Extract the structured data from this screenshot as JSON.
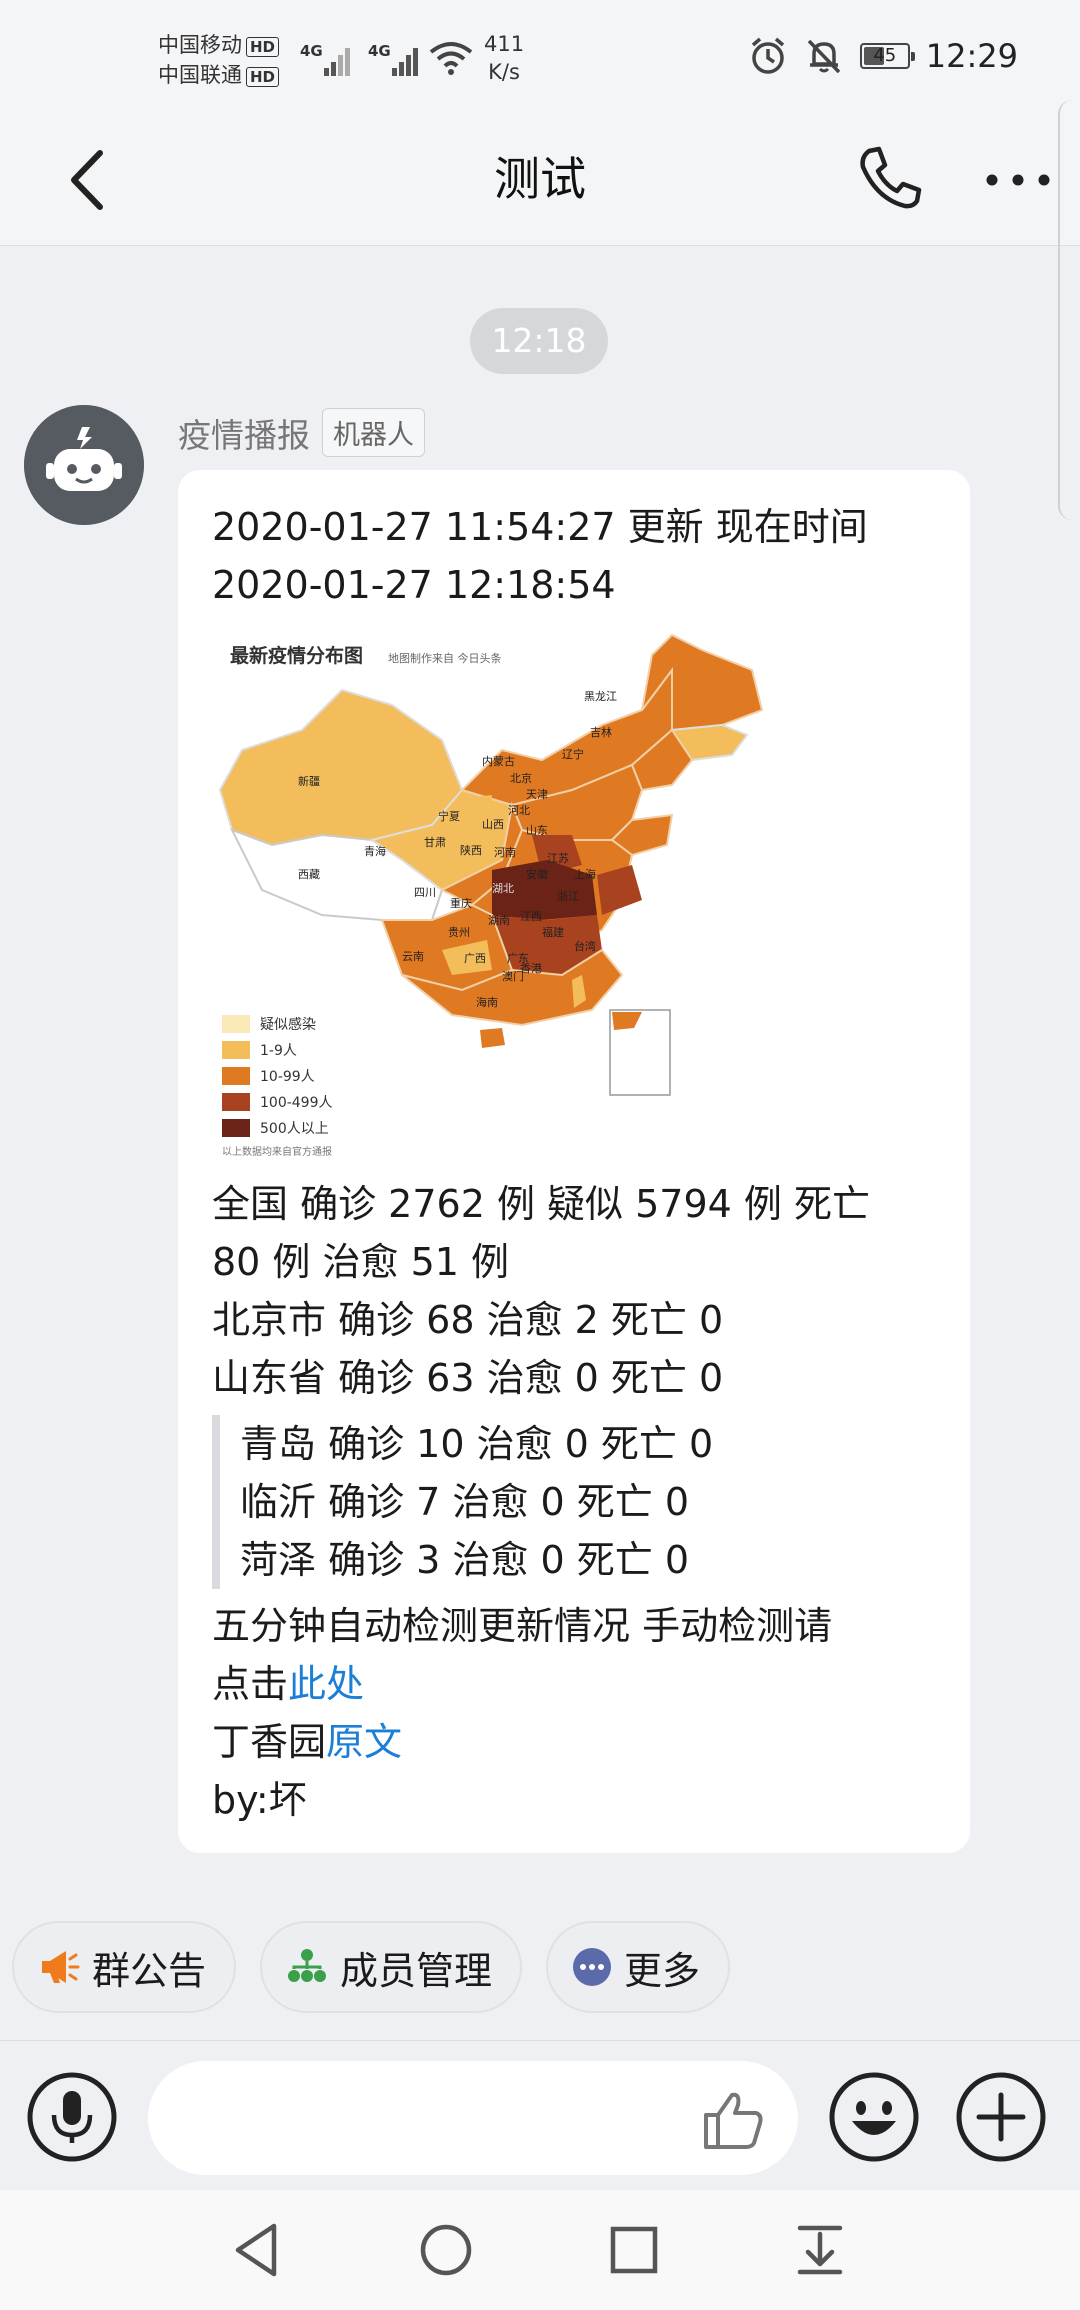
{
  "status_bar": {
    "carrier_1": "中国移动",
    "carrier_2": "中国联通",
    "hd": "HD",
    "network_1": "4G",
    "network_2": "4G",
    "speed_value": "411",
    "speed_unit": "K/s",
    "battery": "45",
    "time": "12:29",
    "icons": [
      "alarm-icon",
      "mute-icon",
      "wifi-icon",
      "signal-icon"
    ]
  },
  "nav": {
    "title": "测试",
    "icons": [
      "back-icon",
      "phone-icon",
      "more-icon"
    ]
  },
  "chat": {
    "timestamp": "12:18",
    "sender": "疫情播报",
    "sender_tag": "机器人",
    "message": {
      "line1": "2020-01-27 11:54:27 更新  现在时间",
      "line2": "2020-01-27 12:18:54",
      "map": {
        "title": "最新疫情分布图",
        "subtitle": "地图制作来自 今日头条",
        "footnote": "以上数据均来自官方通报",
        "legend": [
          {
            "label": "疑似感染",
            "color": "#fbe9b8"
          },
          {
            "label": "1-9人",
            "color": "#f3bd5c"
          },
          {
            "label": "10-99人",
            "color": "#e07a22"
          },
          {
            "label": "100-499人",
            "color": "#a9421f"
          },
          {
            "label": "500人以上",
            "color": "#6b2317"
          }
        ],
        "regions": {
          "xinjiang": "新疆",
          "xizang": "西藏",
          "qinghai": "青海",
          "gansu": "甘肃",
          "neimenggu": "内蒙古",
          "heilongjiang": "黑龙江",
          "jilin": "吉林",
          "liaoning": "辽宁",
          "beijing": "北京",
          "tianjin": "天津",
          "hebei": "河北",
          "shanxi": "山西",
          "shandong": "山东",
          "ningxia": "宁夏",
          "shaanxi": "陕西",
          "henan": "河南",
          "jiangsu": "江苏",
          "shanghai": "上海",
          "anhui": "安徽",
          "hubei": "湖北",
          "sichuan": "四川",
          "chongqing": "重庆",
          "zhejiang": "浙江",
          "hunan": "湖南",
          "jiangxi": "江西",
          "guizhou": "贵州",
          "yunnan": "云南",
          "fujian": "福建",
          "guangxi": "广西",
          "guangdong": "广东",
          "taiwan": "台湾",
          "xianggang": "香港",
          "aomen": "澳门",
          "hainan": "海南"
        }
      },
      "national": "全国 确诊 2762 例 疑似 5794 例 死亡",
      "national_cont": "80 例 治愈 51 例",
      "beijing": "北京市 确诊 68 治愈 2 死亡 0",
      "shandong": "山东省 确诊 63 治愈 0 死亡 0",
      "cities": [
        "青岛 确诊 10 治愈 0 死亡 0",
        "临沂 确诊 7 治愈 0 死亡 0",
        "菏泽 确诊 3 治愈 0 死亡 0"
      ],
      "auto_check": "五分钟自动检测更新情况 手动检测请",
      "click_prefix": "点击",
      "click_link": "此处",
      "dxy_prefix": "丁香园",
      "dxy_link": "原文",
      "by": "by:坏"
    }
  },
  "quick_actions": [
    {
      "label": "群公告",
      "icon": "megaphone-icon"
    },
    {
      "label": "成员管理",
      "icon": "org-chart-icon"
    },
    {
      "label": "更多",
      "icon": "more-dots-icon"
    }
  ],
  "input_bar": {
    "value": "",
    "icons": [
      "microphone-icon",
      "thumbs-up-icon",
      "emoji-icon",
      "plus-icon"
    ]
  },
  "system_nav": [
    "back-triangle-icon",
    "home-circle-icon",
    "recents-square-icon",
    "notification-pull-icon"
  ]
}
